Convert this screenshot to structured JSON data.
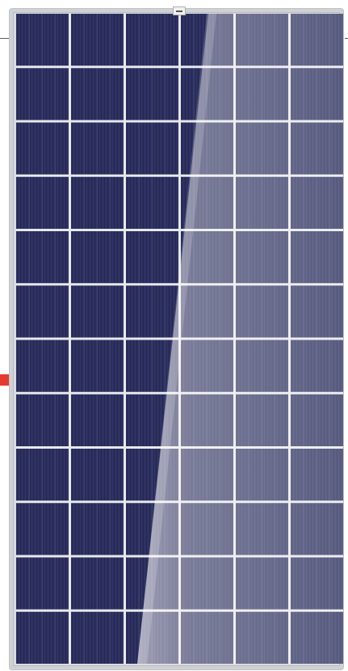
{
  "image": {
    "subject": "solar-panel",
    "cell_grid": {
      "columns": 6,
      "rows": 12
    },
    "colors": {
      "cell": "#2b2e5c",
      "cell_dark": "#23264f",
      "gridline": "#e7e8ee",
      "frame": "#cfd1d4",
      "glare": "#ffffff",
      "marker": "#e53a2f"
    }
  }
}
